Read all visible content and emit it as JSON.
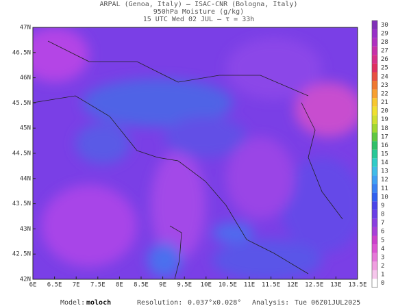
{
  "header": {
    "lines": [
      "ARPAL (Genoa, Italy)  –  ISAC-CNR (Bologna, Italy)",
      "950hPa Moisture (g/kg)",
      "15 UTC Wed 02 JUL  –  τ = 33h"
    ]
  },
  "map": {
    "lat_labels": [
      "47N",
      "46.5N",
      "46N",
      "45.5N",
      "45N",
      "44.5N",
      "44N",
      "43.5N",
      "43N",
      "42.5N",
      "42N"
    ],
    "lon_labels": [
      "6E",
      "6.5E",
      "7E",
      "7.5E",
      "8E",
      "8.5E",
      "9E",
      "9.5E",
      "10E",
      "10.5E",
      "11E",
      "11.5E",
      "12E",
      "12.5E",
      "13E",
      "13.5E"
    ]
  },
  "colorbar": {
    "labels": [
      "0",
      "1",
      "2",
      "3",
      "4",
      "5",
      "6",
      "7",
      "8",
      "9",
      "10",
      "11",
      "12",
      "13",
      "14",
      "15",
      "16",
      "17",
      "18",
      "19",
      "20",
      "21",
      "22",
      "23",
      "24",
      "25",
      "26",
      "27",
      "28",
      "29",
      "30"
    ]
  },
  "footer": {
    "model_label": "Model:",
    "model": "moloch",
    "resolution_label": "Resolution:",
    "resolution": "0.037°x0.028°",
    "analysis_label": "Analysis:",
    "analysis": "Tue 06Z01JUL2025"
  }
}
